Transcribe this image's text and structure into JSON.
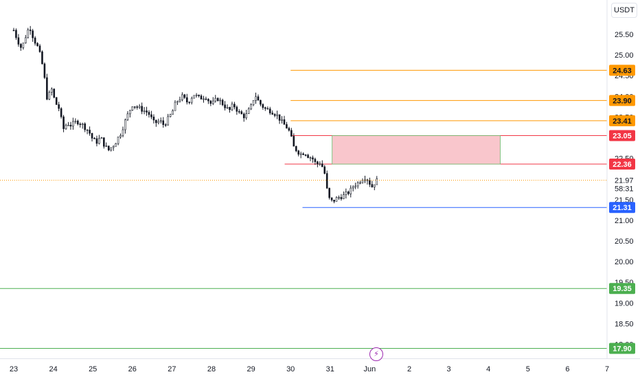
{
  "currency_label": "USDT",
  "icons": {
    "alert_button": "lightning-icon"
  },
  "chart_data": {
    "type": "candlestick",
    "title": "",
    "xlabel": "",
    "ylabel": "",
    "y_range": [
      17.95,
      26.1
    ],
    "x_range": [
      "23",
      "7"
    ],
    "price_ticks": [
      "25.50",
      "25.00",
      "24.50",
      "24.00",
      "23.50",
      "22.50",
      "21.50",
      "21.00",
      "20.50",
      "20.00",
      "19.50",
      "19.00",
      "18.50",
      "18.00"
    ],
    "time_ticks": [
      "23",
      "24",
      "25",
      "26",
      "27",
      "28",
      "29",
      "30",
      "31",
      "Jun",
      "2",
      "3",
      "4",
      "5",
      "6",
      "7"
    ],
    "last_price": {
      "value": "21.97",
      "countdown": "58:31",
      "color": "#ff9800"
    },
    "horizontal_levels": [
      {
        "value": 24.63,
        "label": "24.63",
        "color": "#ff9800"
      },
      {
        "value": 23.9,
        "label": "23.90",
        "color": "#ff9800"
      },
      {
        "value": 23.41,
        "label": "23.41",
        "color": "#ff9800"
      },
      {
        "value": 23.05,
        "label": "23.05",
        "color": "#f23645"
      },
      {
        "value": 22.36,
        "label": "22.36",
        "color": "#f23645"
      },
      {
        "value": 21.31,
        "label": "21.31",
        "color": "#2962ff"
      },
      {
        "value": 19.35,
        "label": "19.35",
        "color": "#4caf50"
      },
      {
        "value": 17.9,
        "label": "17.90",
        "color": "#4caf50"
      }
    ],
    "zone": {
      "top": 23.05,
      "bottom": 22.36,
      "x_start_day": 31.05,
      "x_end_day": 35.3,
      "color": "#f9c6cc"
    },
    "price_path": [
      [
        23.0,
        25.6
      ],
      [
        23.1,
        25.35
      ],
      [
        23.2,
        25.15
      ],
      [
        23.3,
        25.45
      ],
      [
        23.4,
        25.7
      ],
      [
        23.5,
        25.4
      ],
      [
        23.6,
        25.2
      ],
      [
        23.7,
        24.9
      ],
      [
        23.8,
        24.3
      ],
      [
        23.85,
        23.9
      ],
      [
        23.95,
        24.2
      ],
      [
        24.05,
        23.85
      ],
      [
        24.15,
        23.7
      ],
      [
        24.25,
        23.2
      ],
      [
        24.35,
        23.35
      ],
      [
        24.45,
        23.3
      ],
      [
        24.6,
        23.4
      ],
      [
        24.75,
        23.3
      ],
      [
        24.9,
        23.15
      ],
      [
        25.0,
        22.95
      ],
      [
        25.1,
        22.9
      ],
      [
        25.2,
        23.0
      ],
      [
        25.3,
        22.8
      ],
      [
        25.4,
        22.7
      ],
      [
        25.55,
        22.85
      ],
      [
        25.7,
        23.1
      ],
      [
        25.9,
        23.6
      ],
      [
        26.0,
        23.8
      ],
      [
        26.2,
        23.7
      ],
      [
        26.4,
        23.6
      ],
      [
        26.55,
        23.35
      ],
      [
        26.7,
        23.4
      ],
      [
        26.8,
        23.3
      ],
      [
        26.9,
        23.45
      ],
      [
        27.0,
        23.6
      ],
      [
        27.1,
        23.85
      ],
      [
        27.25,
        24.0
      ],
      [
        27.4,
        23.85
      ],
      [
        27.55,
        24.05
      ],
      [
        27.7,
        23.95
      ],
      [
        27.85,
        24.0
      ],
      [
        28.0,
        23.8
      ],
      [
        28.15,
        23.95
      ],
      [
        28.3,
        23.8
      ],
      [
        28.45,
        23.65
      ],
      [
        28.55,
        23.8
      ],
      [
        28.7,
        23.6
      ],
      [
        28.85,
        23.5
      ],
      [
        29.0,
        23.75
      ],
      [
        29.1,
        24.05
      ],
      [
        29.2,
        23.85
      ],
      [
        29.35,
        23.7
      ],
      [
        29.5,
        23.65
      ],
      [
        29.65,
        23.55
      ],
      [
        29.8,
        23.35
      ],
      [
        29.9,
        23.25
      ],
      [
        30.0,
        23.1
      ],
      [
        30.05,
        22.8
      ],
      [
        30.15,
        22.7
      ],
      [
        30.25,
        22.6
      ],
      [
        30.35,
        22.65
      ],
      [
        30.45,
        22.55
      ],
      [
        30.55,
        22.5
      ],
      [
        30.65,
        22.35
      ],
      [
        30.75,
        22.4
      ],
      [
        30.85,
        22.2
      ],
      [
        30.95,
        21.55
      ],
      [
        31.05,
        21.45
      ],
      [
        31.2,
        21.55
      ],
      [
        31.35,
        21.6
      ],
      [
        31.5,
        21.7
      ],
      [
        31.6,
        21.85
      ],
      [
        31.7,
        21.9
      ],
      [
        31.8,
        22.0
      ],
      [
        31.9,
        22.05
      ],
      [
        32.0,
        21.9
      ],
      [
        32.05,
        21.8
      ],
      [
        32.15,
        21.95
      ],
      [
        32.2,
        21.97
      ]
    ]
  }
}
